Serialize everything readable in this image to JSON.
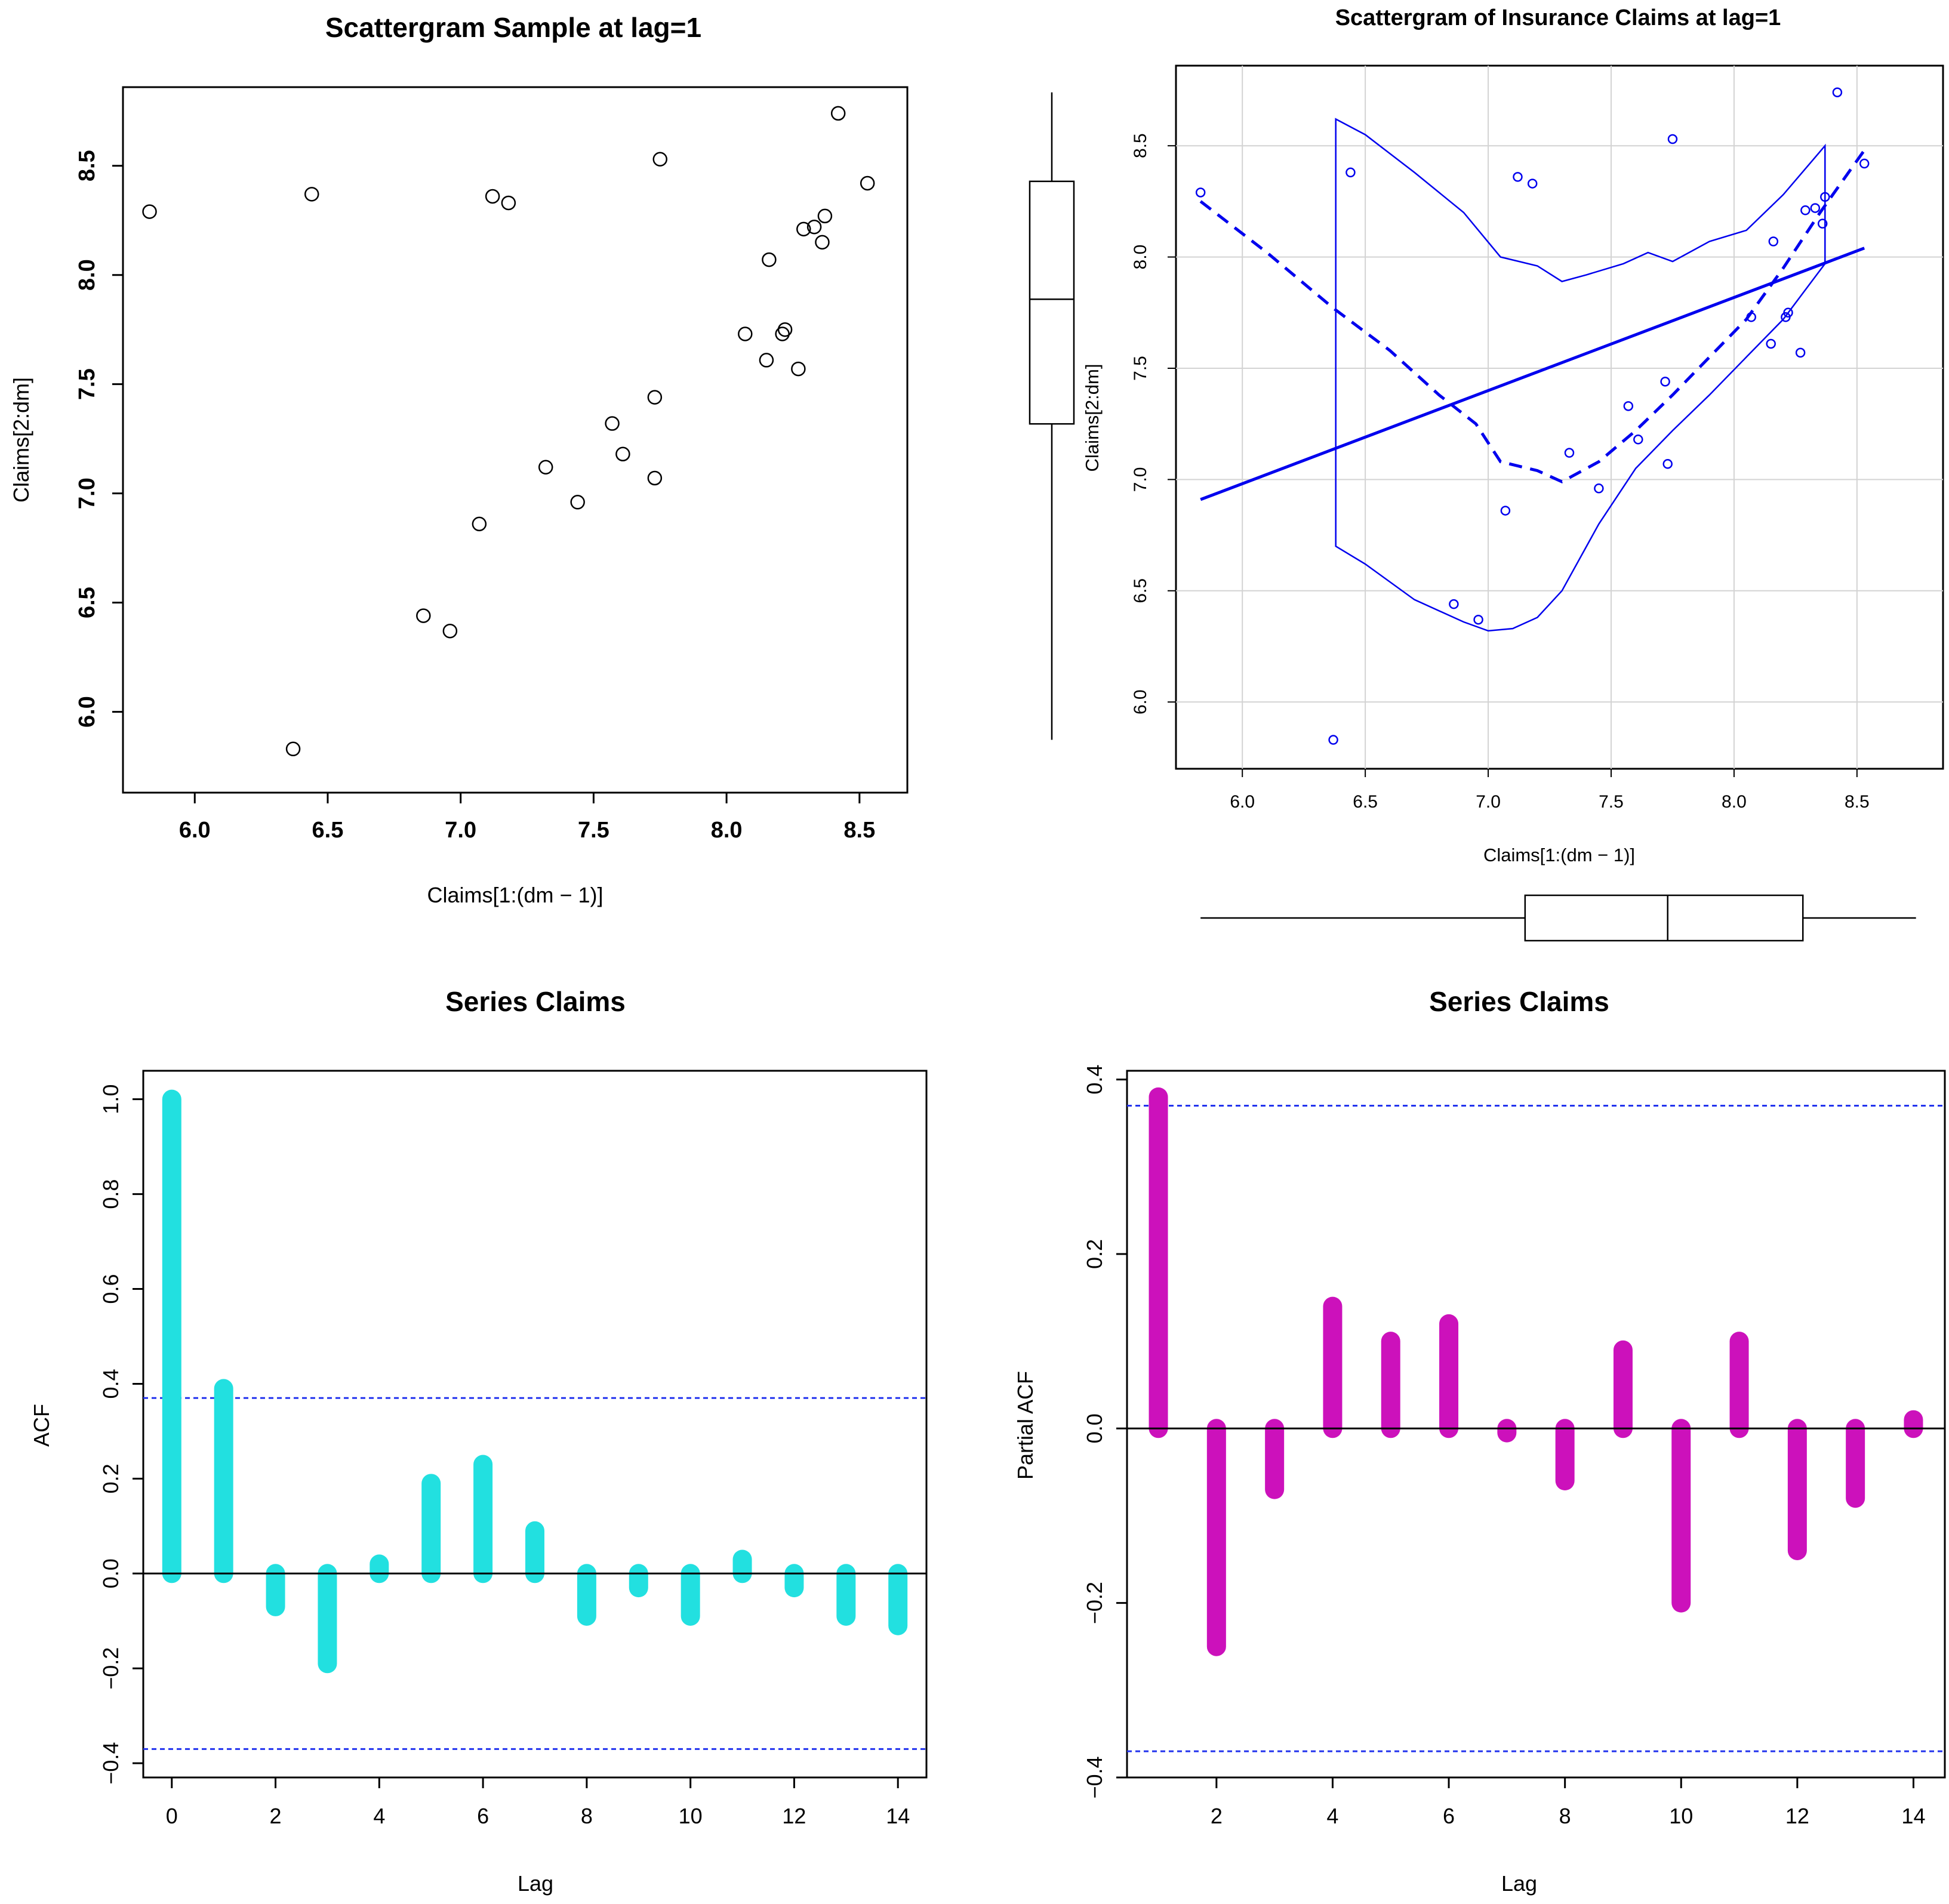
{
  "chart_data": [
    {
      "type": "scatter",
      "title": "Scattergram Sample at lag=1",
      "xlabel": "Claims[1:(dm − 1)]",
      "ylabel": "Claims[2:dm]",
      "xlim": [
        5.73,
        8.68
      ],
      "ylim": [
        5.63,
        8.86
      ],
      "xticks": [
        "6.0",
        "6.5",
        "7.0",
        "7.5",
        "8.0",
        "8.5"
      ],
      "yticks": [
        "6.0",
        "6.5",
        "7.0",
        "7.5",
        "8.0",
        "8.5"
      ],
      "grid": false,
      "points": [
        {
          "x": 5.83,
          "y": 8.29
        },
        {
          "x": 6.37,
          "y": 5.83
        },
        {
          "x": 6.44,
          "y": 8.37
        },
        {
          "x": 6.86,
          "y": 6.44
        },
        {
          "x": 6.96,
          "y": 6.37
        },
        {
          "x": 7.07,
          "y": 6.86
        },
        {
          "x": 7.12,
          "y": 8.36
        },
        {
          "x": 7.18,
          "y": 8.33
        },
        {
          "x": 7.32,
          "y": 7.12
        },
        {
          "x": 7.44,
          "y": 6.96
        },
        {
          "x": 7.57,
          "y": 7.32
        },
        {
          "x": 7.61,
          "y": 7.18
        },
        {
          "x": 7.73,
          "y": 7.44
        },
        {
          "x": 7.73,
          "y": 7.07
        },
        {
          "x": 7.75,
          "y": 8.53
        },
        {
          "x": 8.07,
          "y": 7.73
        },
        {
          "x": 8.15,
          "y": 7.61
        },
        {
          "x": 8.16,
          "y": 8.07
        },
        {
          "x": 8.21,
          "y": 7.73
        },
        {
          "x": 8.22,
          "y": 7.75
        },
        {
          "x": 8.27,
          "y": 7.57
        },
        {
          "x": 8.29,
          "y": 8.21
        },
        {
          "x": 8.33,
          "y": 8.22
        },
        {
          "x": 8.36,
          "y": 8.15
        },
        {
          "x": 8.37,
          "y": 8.27
        },
        {
          "x": 8.42,
          "y": 8.74
        },
        {
          "x": 8.53,
          "y": 8.42
        }
      ]
    },
    {
      "type": "scatter",
      "title": "Scattergram of Insurance Claims at lag=1",
      "xlabel": "Claims[1:(dm − 1)]",
      "ylabel": "Claims[2:dm]",
      "xlim": [
        5.73,
        8.85
      ],
      "ylim": [
        5.7,
        8.86
      ],
      "xticks": [
        "6.0",
        "6.5",
        "7.0",
        "7.5",
        "8.0",
        "8.5"
      ],
      "yticks": [
        "6.0",
        "6.5",
        "7.0",
        "7.5",
        "8.0",
        "8.5"
      ],
      "grid": true,
      "color": "#0000ee",
      "points": [
        {
          "x": 5.83,
          "y": 8.29
        },
        {
          "x": 6.37,
          "y": 5.83
        },
        {
          "x": 6.44,
          "y": 8.38
        },
        {
          "x": 6.86,
          "y": 6.44
        },
        {
          "x": 6.96,
          "y": 6.37
        },
        {
          "x": 7.07,
          "y": 6.86
        },
        {
          "x": 7.12,
          "y": 8.36
        },
        {
          "x": 7.18,
          "y": 8.33
        },
        {
          "x": 7.33,
          "y": 7.12
        },
        {
          "x": 7.45,
          "y": 6.96
        },
        {
          "x": 7.57,
          "y": 7.33
        },
        {
          "x": 7.61,
          "y": 7.18
        },
        {
          "x": 7.72,
          "y": 7.44
        },
        {
          "x": 7.73,
          "y": 7.07
        },
        {
          "x": 7.75,
          "y": 8.53
        },
        {
          "x": 8.07,
          "y": 7.73
        },
        {
          "x": 8.15,
          "y": 7.61
        },
        {
          "x": 8.16,
          "y": 8.07
        },
        {
          "x": 8.21,
          "y": 7.73
        },
        {
          "x": 8.22,
          "y": 7.75
        },
        {
          "x": 8.27,
          "y": 7.57
        },
        {
          "x": 8.29,
          "y": 8.21
        },
        {
          "x": 8.33,
          "y": 8.22
        },
        {
          "x": 8.36,
          "y": 8.15
        },
        {
          "x": 8.37,
          "y": 8.27
        },
        {
          "x": 8.42,
          "y": 8.74
        },
        {
          "x": 8.53,
          "y": 8.42
        }
      ],
      "regression_line": [
        {
          "x": 5.83,
          "y": 6.91
        },
        {
          "x": 8.53,
          "y": 8.04
        }
      ],
      "smoother": [
        {
          "x": 5.83,
          "y": 8.25
        },
        {
          "x": 6.1,
          "y": 8.02
        },
        {
          "x": 6.37,
          "y": 7.77
        },
        {
          "x": 6.6,
          "y": 7.58
        },
        {
          "x": 6.8,
          "y": 7.38
        },
        {
          "x": 6.95,
          "y": 7.25
        },
        {
          "x": 7.05,
          "y": 7.08
        },
        {
          "x": 7.2,
          "y": 7.04
        },
        {
          "x": 7.3,
          "y": 6.99
        },
        {
          "x": 7.45,
          "y": 7.08
        },
        {
          "x": 7.6,
          "y": 7.22
        },
        {
          "x": 7.75,
          "y": 7.38
        },
        {
          "x": 7.9,
          "y": 7.55
        },
        {
          "x": 8.05,
          "y": 7.72
        },
        {
          "x": 8.2,
          "y": 7.95
        },
        {
          "x": 8.35,
          "y": 8.2
        },
        {
          "x": 8.53,
          "y": 8.48
        }
      ],
      "band_upper": [
        {
          "x": 6.38,
          "y": 8.62
        },
        {
          "x": 6.5,
          "y": 8.55
        },
        {
          "x": 6.7,
          "y": 8.38
        },
        {
          "x": 6.9,
          "y": 8.2
        },
        {
          "x": 7.05,
          "y": 8.0
        },
        {
          "x": 7.2,
          "y": 7.96
        },
        {
          "x": 7.3,
          "y": 7.89
        },
        {
          "x": 7.4,
          "y": 7.92
        },
        {
          "x": 7.55,
          "y": 7.97
        },
        {
          "x": 7.65,
          "y": 8.02
        },
        {
          "x": 7.75,
          "y": 7.98
        },
        {
          "x": 7.9,
          "y": 8.07
        },
        {
          "x": 8.05,
          "y": 8.12
        },
        {
          "x": 8.2,
          "y": 8.28
        },
        {
          "x": 8.37,
          "y": 8.5
        }
      ],
      "band_lower": [
        {
          "x": 6.38,
          "y": 6.7
        },
        {
          "x": 6.5,
          "y": 6.62
        },
        {
          "x": 6.7,
          "y": 6.46
        },
        {
          "x": 6.9,
          "y": 6.36
        },
        {
          "x": 7.0,
          "y": 6.32
        },
        {
          "x": 7.1,
          "y": 6.33
        },
        {
          "x": 7.2,
          "y": 6.38
        },
        {
          "x": 7.3,
          "y": 6.5
        },
        {
          "x": 7.45,
          "y": 6.8
        },
        {
          "x": 7.6,
          "y": 7.05
        },
        {
          "x": 7.75,
          "y": 7.22
        },
        {
          "x": 7.9,
          "y": 7.38
        },
        {
          "x": 8.05,
          "y": 7.55
        },
        {
          "x": 8.2,
          "y": 7.72
        },
        {
          "x": 8.37,
          "y": 7.97
        }
      ],
      "y_boxplot": {
        "min": 5.83,
        "q1": 7.25,
        "median": 7.81,
        "q3": 8.34,
        "max": 8.74
      },
      "x_boxplot": {
        "min": 5.83,
        "q1": 7.15,
        "median": 7.73,
        "q3": 8.28,
        "max": 8.74
      }
    },
    {
      "type": "bar",
      "title": "Series  Claims",
      "xlabel": "Lag",
      "ylabel": "ACF",
      "color": "#22e0e0",
      "lags": [
        0,
        1,
        2,
        3,
        4,
        5,
        6,
        7,
        8,
        9,
        10,
        11,
        12,
        13,
        14
      ],
      "values": [
        1.0,
        0.39,
        -0.07,
        -0.19,
        0.02,
        0.19,
        0.23,
        0.09,
        -0.09,
        -0.03,
        -0.09,
        0.03,
        -0.03,
        -0.09,
        -0.11
      ],
      "ci": 0.37,
      "xlim": [
        -0.55,
        14.55
      ],
      "ylim": [
        -0.43,
        1.06
      ],
      "xticks": [
        "0",
        "2",
        "4",
        "6",
        "8",
        "10",
        "12",
        "14"
      ],
      "yticks": [
        "−0.4",
        "−0.2",
        "0.0",
        "0.2",
        "0.4",
        "0.6",
        "0.8",
        "1.0"
      ]
    },
    {
      "type": "bar",
      "title": "Series  Claims",
      "xlabel": "Lag",
      "ylabel": "Partial ACF",
      "color": "#cc11bb",
      "lags": [
        1,
        2,
        3,
        4,
        5,
        6,
        7,
        8,
        9,
        10,
        11,
        12,
        13,
        14
      ],
      "values": [
        0.38,
        -0.25,
        -0.07,
        0.14,
        0.1,
        0.12,
        -0.005,
        -0.06,
        0.09,
        -0.2,
        0.1,
        -0.14,
        -0.08,
        0.01
      ],
      "ci": 0.37,
      "xlim": [
        0.46,
        14.54
      ],
      "ylim": [
        -0.4,
        0.41
      ],
      "xticks": [
        "2",
        "4",
        "6",
        "8",
        "10",
        "12",
        "14"
      ],
      "yticks": [
        "−0.4",
        "−0.2",
        "0.0",
        "0.2",
        "0.4"
      ]
    }
  ]
}
